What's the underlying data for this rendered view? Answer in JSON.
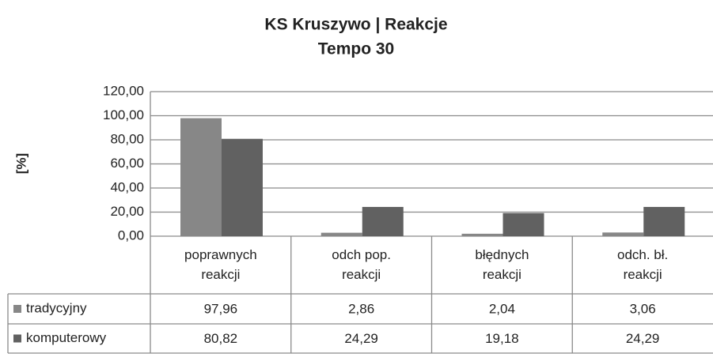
{
  "chart_data": {
    "type": "bar",
    "title": "KS Kruszywo  | Reakcje",
    "subtitle": "Tempo 30",
    "y_label": "[%]",
    "categories": [
      "poprawnych reakcji",
      "odch pop. reakcji",
      "błędnych reakcji",
      "odch. bł. reakcji"
    ],
    "series": [
      {
        "name": "tradycyjny",
        "color": "#878787",
        "values": [
          97.96,
          2.86,
          2.04,
          3.06
        ],
        "value_labels": [
          "97,96",
          "2,86",
          "2,04",
          "3,06"
        ]
      },
      {
        "name": "komputerowy",
        "color": "#616161",
        "values": [
          80.82,
          24.29,
          19.18,
          24.29
        ],
        "value_labels": [
          "80,82",
          "24,29",
          "19,18",
          "24,29"
        ]
      }
    ],
    "ylim": [
      0,
      120
    ],
    "yticks": [
      {
        "value": 0,
        "label": "0,00"
      },
      {
        "value": 20,
        "label": "20,00"
      },
      {
        "value": 40,
        "label": "40,00"
      },
      {
        "value": 60,
        "label": "60,00"
      },
      {
        "value": 80,
        "label": "80,00"
      },
      {
        "value": 100,
        "label": "100,00"
      },
      {
        "value": 120,
        "label": "120,00"
      }
    ],
    "grid": true
  }
}
